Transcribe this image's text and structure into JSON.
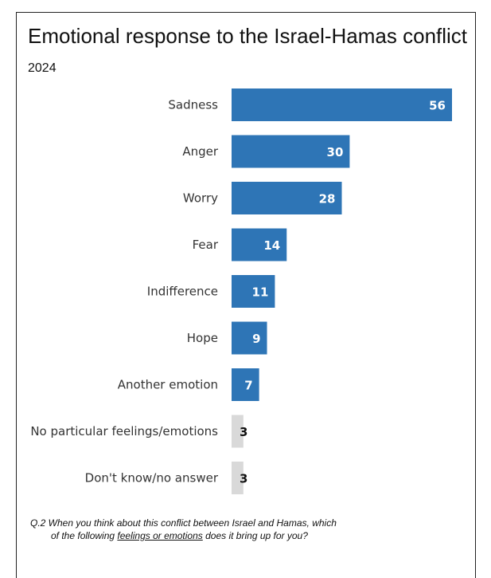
{
  "title": "Emotional response to the Israel-Hamas conflict",
  "subtitle": "2024",
  "colors": {
    "primary_bar": "#2e75b6",
    "neutral_bar": "#d9d9d9",
    "primary_text": "#ffffff",
    "neutral_text": "#111111"
  },
  "note": {
    "prefix": "Q.2  When you think about this conflict between Israel and Hamas, which",
    "line2_before": "of the following ",
    "line2_underlined": "feelings or emotions",
    "line2_after": " does it bring up for you?"
  },
  "chart_data": {
    "type": "bar",
    "orientation": "horizontal",
    "title": "Emotional response to the Israel-Hamas conflict",
    "subtitle": "2024",
    "categories": [
      "Sadness",
      "Anger",
      "Worry",
      "Fear",
      "Indifference",
      "Hope",
      "Another emotion",
      "No particular feelings/emotions",
      "Don't know/no answer"
    ],
    "values": [
      56,
      30,
      28,
      14,
      11,
      9,
      7,
      3,
      3
    ],
    "highlight": [
      true,
      true,
      true,
      true,
      true,
      true,
      true,
      false,
      false
    ],
    "xlim": [
      0,
      56
    ],
    "grid": false,
    "legend": "none"
  }
}
